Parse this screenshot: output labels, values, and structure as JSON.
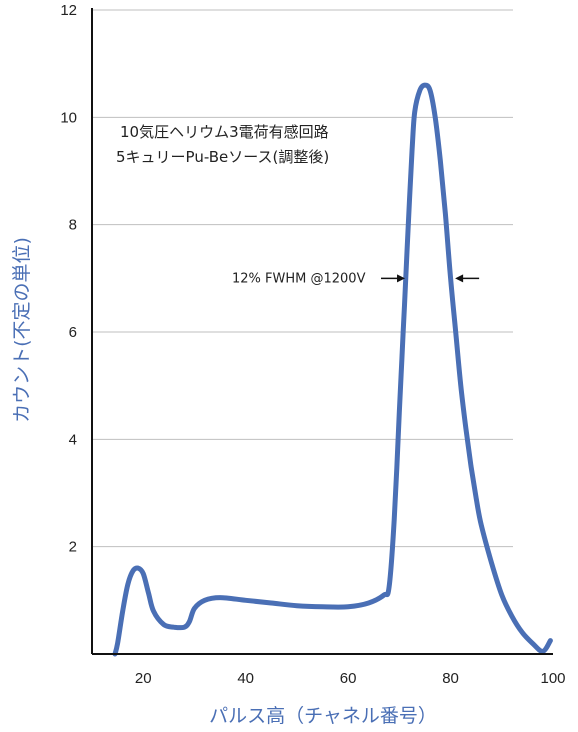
{
  "chart_data": {
    "type": "line",
    "xlabel": "パルス高（チャネル番号）",
    "ylabel": "カウント(不定の単位)",
    "xlim": [
      10,
      100
    ],
    "ylim": [
      0,
      12
    ],
    "x_ticks": [
      20,
      40,
      60,
      80,
      100
    ],
    "y_ticks": [
      2,
      4,
      6,
      8,
      10,
      12
    ],
    "grid": {
      "horizontal": true,
      "vertical": false
    },
    "annotations": [
      "10気圧ヘリウム3電荷有感回路",
      "5キュリーPu-Beソース(調整後)"
    ],
    "fwhm_label": "12% FWHM @1200V",
    "fwhm_markers_x": [
      71.5,
      80.5
    ],
    "fwhm_y": 7.0,
    "colors": {
      "line": "#4a6fb5",
      "axis_title": "#4a6fb5",
      "grid": "#bfbfbf",
      "axis": "#111111"
    },
    "series": [
      {
        "x": [
          14.5,
          15.0,
          16.0,
          17.0,
          18.0,
          19.0,
          20.0,
          21.0,
          22.0,
          24.0,
          26.0,
          28.0,
          29.0,
          30.0,
          32.0,
          35.0,
          40.0,
          45.0,
          50.0,
          55.0,
          60.0,
          64.0,
          67.0,
          68.0,
          69.0,
          70.0,
          70.5,
          71.0,
          71.5,
          72.0,
          72.5,
          73.0,
          74.0,
          75.0,
          76.0,
          77.0,
          78.0,
          79.0,
          80.0,
          81.0,
          82.0,
          83.0,
          84.0,
          85.0,
          86.0,
          88.0,
          90.0,
          92.0,
          94.0,
          96.0,
          98.0,
          99.5
        ],
        "y": [
          0.0,
          0.2,
          0.8,
          1.3,
          1.55,
          1.6,
          1.5,
          1.15,
          0.8,
          0.55,
          0.5,
          0.5,
          0.6,
          0.85,
          1.0,
          1.05,
          1.0,
          0.95,
          0.9,
          0.88,
          0.88,
          0.95,
          1.1,
          1.25,
          2.5,
          4.5,
          5.5,
          6.5,
          7.5,
          8.5,
          9.4,
          10.1,
          10.5,
          10.6,
          10.5,
          10.0,
          9.2,
          8.2,
          7.0,
          6.0,
          5.0,
          4.2,
          3.5,
          2.9,
          2.4,
          1.7,
          1.1,
          0.7,
          0.4,
          0.2,
          0.05,
          0.25
        ]
      }
    ]
  }
}
